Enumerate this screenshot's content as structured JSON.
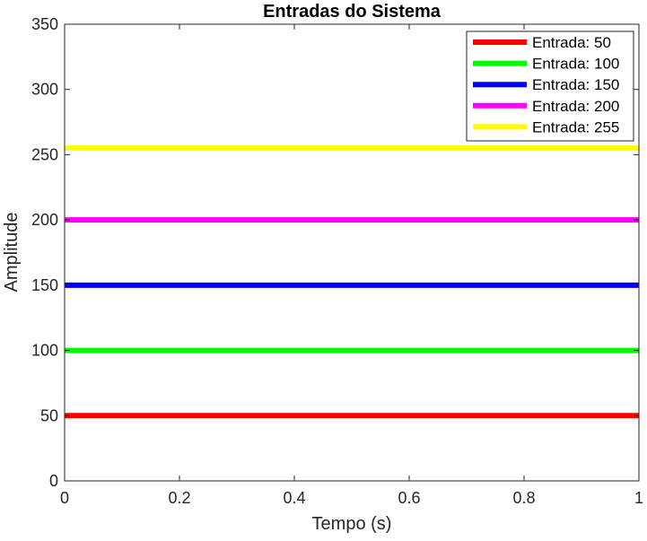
{
  "chart_data": {
    "type": "line",
    "title": "Entradas do Sistema",
    "xlabel": "Tempo (s)",
    "ylabel": "Amplitude",
    "xlim": [
      0,
      1
    ],
    "ylim": [
      0,
      350
    ],
    "xticks": [
      0,
      0.2,
      0.4,
      0.6,
      0.8,
      1
    ],
    "xtick_labels": [
      "0",
      "0.2",
      "0.4",
      "0.6",
      "0.8",
      "1"
    ],
    "yticks": [
      0,
      50,
      100,
      150,
      200,
      250,
      300,
      350
    ],
    "ytick_labels": [
      "0",
      "50",
      "100",
      "150",
      "200",
      "250",
      "300",
      "350"
    ],
    "grid": false,
    "legend_position": "top-right",
    "series": [
      {
        "name": "Entrada: 50",
        "color": "#ff0000",
        "x": [
          0,
          1
        ],
        "y": [
          50,
          50
        ]
      },
      {
        "name": "Entrada: 100",
        "color": "#00ff00",
        "x": [
          0,
          1
        ],
        "y": [
          100,
          100
        ]
      },
      {
        "name": "Entrada: 150",
        "color": "#0000ff",
        "x": [
          0,
          1
        ],
        "y": [
          150,
          150
        ]
      },
      {
        "name": "Entrada: 200",
        "color": "#ff00ff",
        "x": [
          0,
          1
        ],
        "y": [
          200,
          200
        ]
      },
      {
        "name": "Entrada: 255",
        "color": "#ffff00",
        "x": [
          0,
          1
        ],
        "y": [
          255,
          255
        ]
      }
    ]
  }
}
